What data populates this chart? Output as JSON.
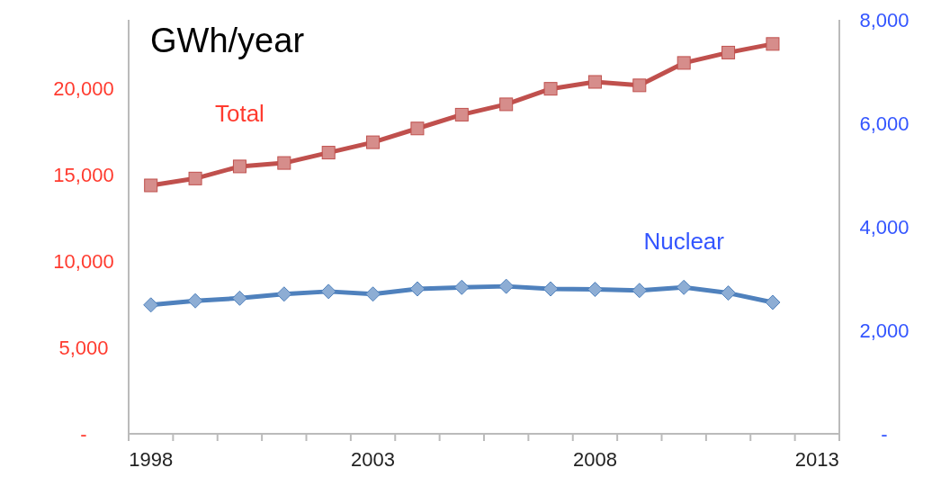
{
  "chart_data": {
    "type": "line",
    "title": "GWh/year",
    "categories": [
      "1998",
      null,
      null,
      null,
      null,
      "2003",
      null,
      null,
      null,
      null,
      "2008",
      null,
      null,
      null,
      null,
      "2013"
    ],
    "series": [
      {
        "name": "Total",
        "color": "#c0504d",
        "marker": "square",
        "values": [
          14400,
          14800,
          15500,
          15700,
          16300,
          16900,
          17700,
          18500,
          19100,
          20000,
          20400,
          20200,
          21500,
          22100,
          22600,
          null
        ]
      },
      {
        "name": "Nuclear",
        "color": "#4f81bd",
        "marker": "diamond",
        "axis": "y2",
        "values": [
          2490,
          2570,
          2620,
          2700,
          2750,
          2700,
          2800,
          2830,
          2850,
          2800,
          2790,
          2770,
          2830,
          2720,
          2540,
          null
        ]
      }
    ],
    "ylim": [
      0,
      24000
    ],
    "yticks": [
      {
        "value": 0,
        "label": "-"
      },
      {
        "value": 5000,
        "label": "5,000"
      },
      {
        "value": 10000,
        "label": "10,000"
      },
      {
        "value": 15000,
        "label": "15,000"
      },
      {
        "value": 20000,
        "label": "20,000"
      }
    ],
    "y2lim": [
      0,
      8000
    ],
    "y2ticks": [
      {
        "value": 0,
        "label": "-"
      },
      {
        "value": 2000,
        "label": "2,000"
      },
      {
        "value": 4000,
        "label": "4,000"
      },
      {
        "value": 6000,
        "label": "6,000"
      },
      {
        "value": 8000,
        "label": "8,000"
      }
    ],
    "grid": false
  }
}
